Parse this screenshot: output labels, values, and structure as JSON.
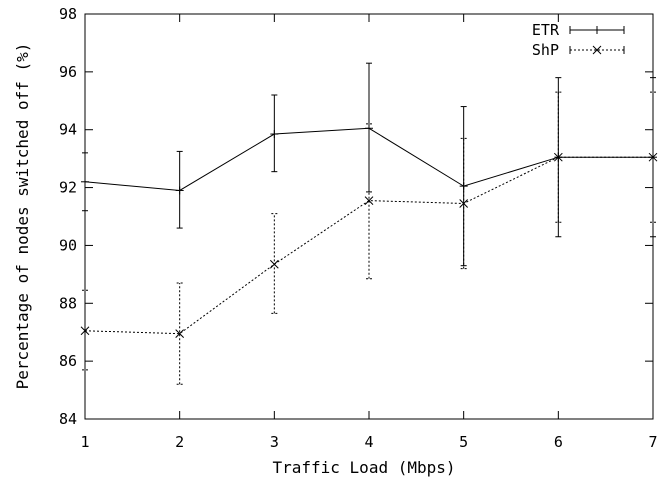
{
  "chart_data": {
    "type": "line",
    "title": "",
    "xlabel": "Traffic Load (Mbps)",
    "ylabel": "Percentage of nodes switched off (%)",
    "xlim": [
      1,
      7
    ],
    "ylim": [
      84,
      98
    ],
    "xticks": [
      1,
      2,
      3,
      4,
      5,
      6,
      7
    ],
    "yticks": [
      84,
      86,
      88,
      90,
      92,
      94,
      96,
      98
    ],
    "grid": false,
    "legend_position": "top-right",
    "x": [
      1,
      2,
      3,
      4,
      5,
      6,
      7
    ],
    "series": [
      {
        "name": "ETR",
        "style": "solid",
        "marker": "plus",
        "color": "#000000",
        "values": [
          92.2,
          91.9,
          93.85,
          94.05,
          92.05,
          93.05,
          93.05
        ],
        "error_low": [
          91.2,
          90.6,
          92.55,
          91.85,
          89.3,
          90.3,
          90.3
        ],
        "error_high": [
          93.2,
          93.25,
          95.2,
          96.3,
          94.8,
          95.8,
          95.8
        ]
      },
      {
        "name": "ShP",
        "style": "dotted",
        "marker": "cross",
        "color": "#000000",
        "values": [
          87.05,
          86.95,
          89.35,
          91.55,
          91.45,
          93.05,
          93.05
        ],
        "error_low": [
          85.7,
          85.2,
          87.65,
          88.85,
          89.2,
          90.8,
          90.8
        ],
        "error_high": [
          88.45,
          88.7,
          91.1,
          94.2,
          93.7,
          95.3,
          95.3
        ]
      }
    ]
  }
}
